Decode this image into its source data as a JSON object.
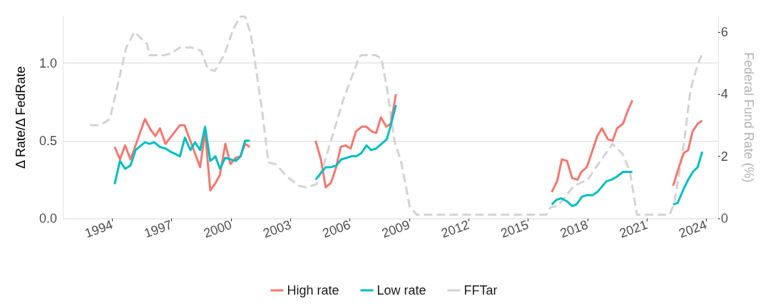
{
  "chart_data": {
    "type": "line",
    "ylabel": "Δ Rate/Δ FedRate",
    "y2label": "Federal Fund Rate (%)",
    "xlim": [
      1991.5,
      2024.6
    ],
    "xticks": [
      1994,
      1997,
      2000,
      2003,
      2006,
      2009,
      2012,
      2015,
      2018,
      2021,
      2024
    ],
    "ylim": [
      0,
      1.3
    ],
    "yticks": [
      {
        "value": 0,
        "label": "0.0"
      },
      {
        "value": 0.5,
        "label": "0.5"
      },
      {
        "value": 1,
        "label": "1.0"
      }
    ],
    "y2lim": [
      0,
      6.5
    ],
    "y2ticks": [
      0,
      2,
      4,
      6
    ],
    "grid": "y",
    "legend": "bottom",
    "marker": "none",
    "series": [
      {
        "name": "High rate",
        "color": "#f8766d",
        "line_style": "solid",
        "x": [
          1994.12,
          1994.39,
          1994.65,
          1994.92,
          1995.18,
          1995.65,
          1995.94,
          1996.18,
          1996.41,
          1996.69,
          1997.42,
          1997.65,
          1998.44,
          1998.69,
          1998.95,
          1999.18,
          1999.44,
          1999.71,
          1999.97,
          2000.24,
          2000.48,
          2000.71,
          2000.95,
          2002.5,
          2004.27,
          2004.54,
          2004.78,
          2005.05,
          2005.31,
          2005.54,
          2005.78,
          2006.04,
          2006.31,
          2006.6,
          2006.84,
          2007.1,
          2007.33,
          2007.57,
          2007.84,
          2008.07,
          2008.33,
          2012,
          2016.2,
          2016.47,
          2016.71,
          2016.97,
          2017.23,
          2017.5,
          2017.7,
          2017.97,
          2018.5,
          2018.73,
          2019.03,
          2019.27,
          2019.5,
          2019.8,
          2020.03,
          2020.27,
          2021,
          2022.33,
          2022.62,
          2022.86,
          2023.09,
          2023.31,
          2023.57,
          2023.8
        ],
        "values": [
          0.46,
          0.38,
          0.47,
          0.38,
          0.47,
          0.64,
          0.57,
          0.53,
          0.58,
          0.48,
          0.6,
          0.6,
          0.33,
          0.56,
          0.18,
          0.22,
          0.28,
          0.48,
          0.35,
          0.39,
          0.4,
          0.48,
          0.46,
          null,
          0.5,
          0.38,
          0.2,
          0.23,
          0.33,
          0.46,
          0.47,
          0.45,
          0.56,
          0.59,
          0.59,
          0.56,
          0.55,
          0.65,
          0.59,
          0.61,
          0.8,
          null,
          0.17,
          0.24,
          0.38,
          0.37,
          0.26,
          0.25,
          0.3,
          0.33,
          0.53,
          0.58,
          0.51,
          0.5,
          0.58,
          0.61,
          0.69,
          0.76,
          null,
          0.21,
          0.33,
          0.42,
          0.44,
          0.56,
          0.61,
          0.63
        ]
      },
      {
        "name": "Low rate",
        "color": "#00bfc4",
        "line_style": "solid",
        "x": [
          1994.12,
          1994.39,
          1994.65,
          1994.92,
          1995.18,
          1995.65,
          1995.88,
          1996.12,
          1996.41,
          1996.69,
          1996.94,
          1997.42,
          1997.67,
          1997.95,
          1998.18,
          1998.44,
          1998.69,
          1998.95,
          1999.21,
          1999.44,
          1999.71,
          2000.24,
          2000.48,
          2000.71,
          2000.95,
          2002.5,
          2004.27,
          2004.78,
          2005.05,
          2005.31,
          2005.57,
          2005.84,
          2006.07,
          2006.34,
          2006.58,
          2006.84,
          2007.07,
          2007.33,
          2007.6,
          2007.87,
          2008.07,
          2008.33,
          2012,
          2016.2,
          2016.44,
          2016.67,
          2016.97,
          2017.23,
          2017.44,
          2017.73,
          2017.97,
          2018.26,
          2018.5,
          2018.97,
          2019.23,
          2019.5,
          2019.8,
          2020.09,
          2020.27,
          2021,
          2022.33,
          2022.56,
          2022.86,
          2023.09,
          2023.33,
          2023.57,
          2023.8
        ],
        "values": [
          0.22,
          0.37,
          0.32,
          0.34,
          0.44,
          0.49,
          0.48,
          0.49,
          0.46,
          0.45,
          0.43,
          0.4,
          0.52,
          0.44,
          0.49,
          0.44,
          0.59,
          0.37,
          0.4,
          0.32,
          0.39,
          0.37,
          0.4,
          0.5,
          0.5,
          null,
          0.25,
          0.33,
          0.33,
          0.34,
          0.38,
          0.39,
          0.4,
          0.4,
          0.42,
          0.47,
          0.44,
          0.45,
          0.48,
          0.51,
          0.6,
          0.73,
          null,
          0.09,
          0.12,
          0.13,
          0.11,
          0.08,
          0.09,
          0.14,
          0.15,
          0.15,
          0.17,
          0.24,
          0.25,
          0.27,
          0.3,
          0.3,
          0.3,
          null,
          0.09,
          0.1,
          0.19,
          0.25,
          0.3,
          0.33,
          0.43
        ]
      },
      {
        "name": "FFTar",
        "color": "#d3d3d3",
        "line_style": "dashed",
        "axis": "y2",
        "x": [
          1992.88,
          1993.41,
          1993.88,
          1994.71,
          1995.12,
          1995.77,
          1995.88,
          1996.59,
          1996.94,
          1997.42,
          1998.0,
          1998.48,
          1998.83,
          1999.18,
          1999.65,
          2000.12,
          2000.48,
          2000.71,
          2001.01,
          2001.54,
          2001.89,
          2002.24,
          2002.83,
          2003.42,
          2003.78,
          2004.31,
          2004.72,
          2005.66,
          2006.48,
          2006.6,
          2007.31,
          2007.6,
          2007.9,
          2008.25,
          2008.6,
          2009.02,
          2009.37,
          2015.91,
          2016.14,
          2016.5,
          2017.32,
          2018.03,
          2018.38,
          2019.27,
          2019.8,
          2020.15,
          2020.5,
          2022.15,
          2022.38,
          2022.86,
          2023.21,
          2023.5,
          2023.77
        ],
        "values": [
          3,
          3,
          3.2,
          5.5,
          6,
          5.6,
          5.25,
          5.25,
          5.3,
          5.5,
          5.5,
          5.4,
          4.8,
          4.75,
          5.25,
          6.1,
          6.5,
          6.5,
          5.9,
          3.6,
          1.8,
          1.75,
          1.35,
          1.05,
          1,
          1.1,
          1.8,
          3.8,
          5.2,
          5.25,
          5.25,
          5.15,
          4.1,
          2.5,
          1.8,
          0.4,
          0.12,
          0.12,
          0.36,
          0.4,
          1.05,
          1.25,
          1.6,
          2.4,
          2.05,
          1.5,
          0.12,
          0.12,
          0.47,
          2.35,
          4.15,
          4.8,
          5.27
        ]
      }
    ]
  }
}
